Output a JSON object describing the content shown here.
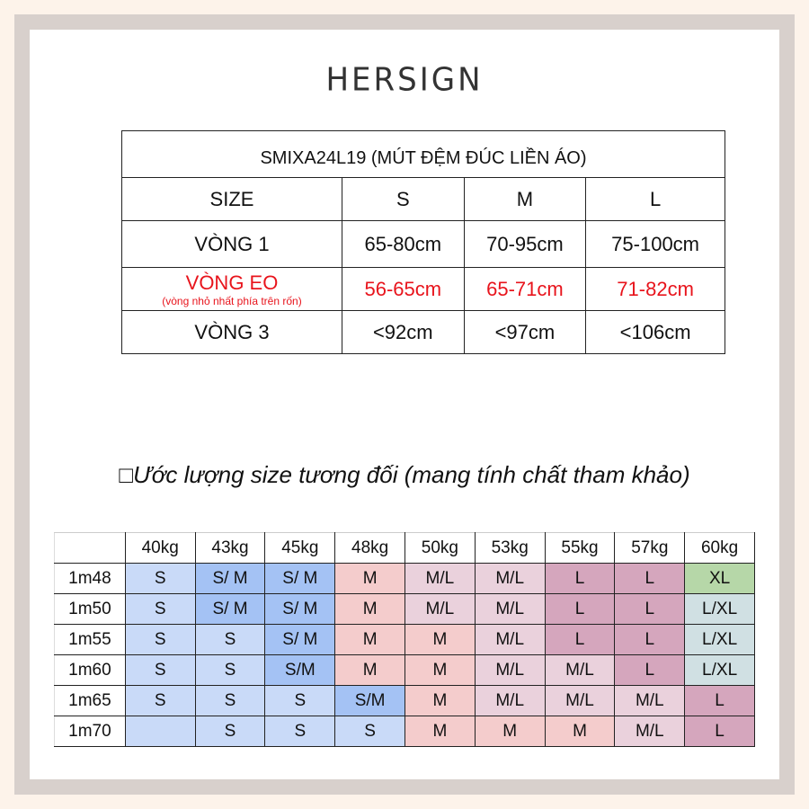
{
  "brand": "HERSIGN",
  "size_table": {
    "title": "SMIXA24L19 (MÚT ĐỆM ĐÚC LIỀN ÁO)",
    "headers": [
      "SIZE",
      "S",
      "M",
      "L"
    ],
    "rows": [
      {
        "label": "VÒNG 1",
        "values": [
          "65-80cm",
          "70-95cm",
          "75-100cm"
        ]
      },
      {
        "label": "VÒNG EO",
        "note": "(vòng nhỏ nhất phía trên rốn)",
        "values": [
          "56-65cm",
          "65-71cm",
          "71-82cm"
        ]
      },
      {
        "label": "VÒNG 3",
        "values": [
          "<92cm",
          "<97cm",
          "<106cm"
        ]
      }
    ]
  },
  "estimate_heading": "□Ước lượng size tương đối (mang tính chất tham khảo)",
  "estimate_table": {
    "weights": [
      "40kg",
      "43kg",
      "45kg",
      "48kg",
      "50kg",
      "53kg",
      "55kg",
      "57kg",
      "60kg"
    ],
    "rows": [
      {
        "height": "1m48",
        "sizes": [
          "S",
          "S/ M",
          "S/ M",
          "M",
          "M/L",
          "M/L",
          "L",
          "L",
          "XL"
        ]
      },
      {
        "height": "1m50",
        "sizes": [
          "S",
          "S/ M",
          "S/ M",
          "M",
          "M/L",
          "M/L",
          "L",
          "L",
          "L/XL"
        ]
      },
      {
        "height": "1m55",
        "sizes": [
          "S",
          "S",
          "S/ M",
          "M",
          "M",
          "M/L",
          "L",
          "L",
          "L/XL"
        ]
      },
      {
        "height": "1m60",
        "sizes": [
          "S",
          "S",
          "S/M",
          "M",
          "M",
          "M/L",
          "M/L",
          "L",
          "L/XL"
        ]
      },
      {
        "height": "1m65",
        "sizes": [
          "S",
          "S",
          "S",
          "S/M",
          "M",
          "M/L",
          "M/L",
          "M/L",
          "L"
        ]
      },
      {
        "height": "1m70",
        "sizes": [
          "",
          "S",
          "S",
          "S",
          "M",
          "M",
          "M",
          "M/L",
          "L"
        ]
      }
    ]
  },
  "colors": {
    "S": "#c9daf8",
    "S/M": "#a4c2f4",
    "M": "#f4cccc",
    "M/L": "#ead1dc",
    "L": "#d5a6bd",
    "XL": "#b6d7a8",
    "L/XL": "#d0e0e3"
  }
}
